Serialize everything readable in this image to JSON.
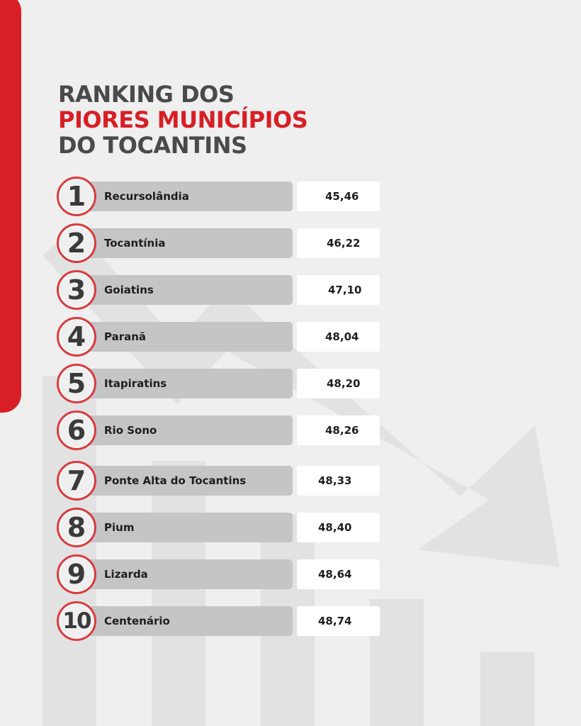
{
  "title": {
    "line1": "RANKING DOS",
    "line2": "PIORES MUNICÍPIOS",
    "line3": "DO TOCANTINS"
  },
  "accent_color": "#d81f26",
  "ranking": [
    {
      "rank": "1",
      "name": "Recursolândia",
      "value": "45,46"
    },
    {
      "rank": "2",
      "name": "Tocantínia",
      "value": "46,22"
    },
    {
      "rank": "3",
      "name": "Goiatins",
      "value": "47,10"
    },
    {
      "rank": "4",
      "name": "Paranã",
      "value": "48,04"
    },
    {
      "rank": "5",
      "name": "Itapiratins",
      "value": "48,20"
    },
    {
      "rank": "6",
      "name": "Rio Sono",
      "value": "48,26"
    },
    {
      "rank": "7",
      "name": "Ponte Alta do Tocantins",
      "value": "48,33"
    },
    {
      "rank": "8",
      "name": "Pium",
      "value": "48,40"
    },
    {
      "rank": "9",
      "name": "Lizarda",
      "value": "48,64"
    },
    {
      "rank": "10",
      "name": "Centenário",
      "value": "48,74"
    }
  ]
}
